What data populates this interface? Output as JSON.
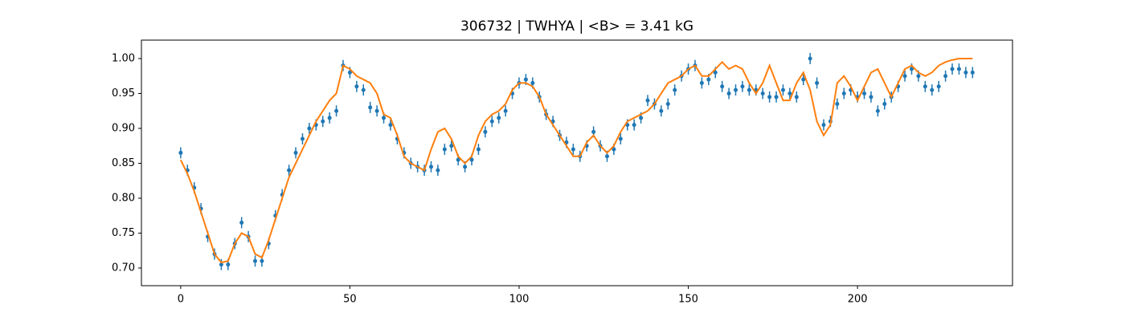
{
  "chart_data": {
    "type": "scatter",
    "title": "306732 | TWHYA | <B> = 3.41 kG",
    "xlim": [
      -11.6,
      245.8
    ],
    "ylim": [
      0.6747,
      1.0264
    ],
    "xticks": [
      0,
      50,
      100,
      150,
      200
    ],
    "yticks": [
      {
        "value": 0.7,
        "label": "0.70"
      },
      {
        "value": 0.75,
        "label": "0.75"
      },
      {
        "value": 0.8,
        "label": "0.80"
      },
      {
        "value": 0.85,
        "label": "0.85"
      },
      {
        "value": 0.9,
        "label": "0.90"
      },
      {
        "value": 0.95,
        "label": "0.95"
      },
      {
        "value": 1.0,
        "label": "1.00"
      }
    ],
    "series": [
      {
        "type": "scatter",
        "color": "#1f77b4",
        "yerr": 0.008,
        "x": [
          0,
          2,
          4,
          6,
          8,
          10,
          12,
          14,
          16,
          18,
          20,
          22,
          24,
          26,
          28,
          30,
          32,
          34,
          36,
          38,
          40,
          42,
          44,
          46,
          48,
          50,
          52,
          54,
          56,
          58,
          60,
          62,
          64,
          66,
          68,
          70,
          72,
          74,
          76,
          78,
          80,
          82,
          84,
          86,
          88,
          90,
          92,
          94,
          96,
          98,
          100,
          102,
          104,
          106,
          108,
          110,
          112,
          114,
          116,
          118,
          120,
          122,
          124,
          126,
          128,
          130,
          132,
          134,
          136,
          138,
          140,
          142,
          144,
          146,
          148,
          150,
          152,
          154,
          156,
          158,
          160,
          162,
          164,
          166,
          168,
          170,
          172,
          174,
          176,
          178,
          180,
          182,
          184,
          186,
          188,
          190,
          192,
          194,
          196,
          198,
          200,
          202,
          204,
          206,
          208,
          210,
          212,
          214,
          216,
          218,
          220,
          222,
          224,
          226,
          228,
          230,
          232,
          234
        ],
        "values": [
          0.865,
          0.84,
          0.815,
          0.785,
          0.745,
          0.72,
          0.705,
          0.705,
          0.735,
          0.765,
          0.745,
          0.71,
          0.71,
          0.735,
          0.775,
          0.805,
          0.84,
          0.865,
          0.885,
          0.9,
          0.905,
          0.91,
          0.915,
          0.925,
          0.99,
          0.98,
          0.96,
          0.955,
          0.93,
          0.925,
          0.915,
          0.905,
          0.885,
          0.865,
          0.85,
          0.845,
          0.84,
          0.845,
          0.84,
          0.87,
          0.875,
          0.855,
          0.845,
          0.855,
          0.87,
          0.895,
          0.91,
          0.915,
          0.925,
          0.95,
          0.965,
          0.97,
          0.965,
          0.945,
          0.92,
          0.91,
          0.89,
          0.88,
          0.87,
          0.86,
          0.875,
          0.895,
          0.875,
          0.86,
          0.87,
          0.885,
          0.905,
          0.905,
          0.915,
          0.94,
          0.935,
          0.925,
          0.935,
          0.955,
          0.975,
          0.985,
          0.99,
          0.965,
          0.97,
          0.98,
          0.96,
          0.95,
          0.955,
          0.96,
          0.955,
          0.955,
          0.95,
          0.945,
          0.945,
          0.955,
          0.95,
          0.945,
          0.97,
          1.0,
          0.965,
          0.905,
          0.91,
          0.935,
          0.95,
          0.955,
          0.945,
          0.95,
          0.945,
          0.925,
          0.935,
          0.945,
          0.96,
          0.975,
          0.985,
          0.975,
          0.96,
          0.955,
          0.96,
          0.975,
          0.985,
          0.985,
          0.98,
          0.98
        ]
      },
      {
        "type": "line",
        "color": "#ff7f0e",
        "x": [
          0,
          2,
          4,
          6,
          8,
          10,
          12,
          14,
          16,
          18,
          20,
          22,
          24,
          26,
          28,
          30,
          32,
          34,
          36,
          38,
          40,
          42,
          44,
          46,
          48,
          50,
          52,
          54,
          56,
          58,
          60,
          62,
          64,
          66,
          68,
          70,
          72,
          74,
          76,
          78,
          80,
          82,
          84,
          86,
          88,
          90,
          92,
          94,
          96,
          98,
          100,
          102,
          104,
          106,
          108,
          110,
          112,
          114,
          116,
          118,
          120,
          122,
          124,
          126,
          128,
          130,
          132,
          134,
          136,
          138,
          140,
          142,
          144,
          146,
          148,
          150,
          152,
          154,
          156,
          158,
          160,
          162,
          164,
          166,
          168,
          170,
          172,
          174,
          176,
          178,
          180,
          182,
          184,
          186,
          188,
          190,
          192,
          194,
          196,
          198,
          200,
          202,
          204,
          206,
          208,
          210,
          212,
          214,
          216,
          218,
          220,
          222,
          224,
          226,
          228,
          230,
          232,
          234
        ],
        "values": [
          0.855,
          0.835,
          0.81,
          0.78,
          0.75,
          0.72,
          0.708,
          0.71,
          0.735,
          0.75,
          0.745,
          0.72,
          0.715,
          0.74,
          0.77,
          0.8,
          0.83,
          0.85,
          0.87,
          0.89,
          0.91,
          0.925,
          0.94,
          0.95,
          0.99,
          0.985,
          0.975,
          0.97,
          0.965,
          0.95,
          0.92,
          0.915,
          0.89,
          0.86,
          0.85,
          0.845,
          0.84,
          0.87,
          0.895,
          0.9,
          0.885,
          0.86,
          0.85,
          0.86,
          0.89,
          0.91,
          0.92,
          0.925,
          0.935,
          0.955,
          0.965,
          0.965,
          0.96,
          0.945,
          0.92,
          0.905,
          0.89,
          0.875,
          0.86,
          0.86,
          0.88,
          0.89,
          0.875,
          0.865,
          0.875,
          0.895,
          0.91,
          0.915,
          0.92,
          0.925,
          0.935,
          0.95,
          0.965,
          0.97,
          0.975,
          0.985,
          0.99,
          0.975,
          0.975,
          0.985,
          0.995,
          0.985,
          0.99,
          0.985,
          0.965,
          0.95,
          0.965,
          0.99,
          0.965,
          0.94,
          0.94,
          0.965,
          0.98,
          0.955,
          0.91,
          0.89,
          0.905,
          0.965,
          0.975,
          0.96,
          0.94,
          0.96,
          0.98,
          0.985,
          0.965,
          0.945,
          0.965,
          0.985,
          0.99,
          0.98,
          0.975,
          0.98,
          0.99,
          0.995,
          0.998,
          1.0,
          1.0,
          1.0
        ]
      }
    ]
  }
}
